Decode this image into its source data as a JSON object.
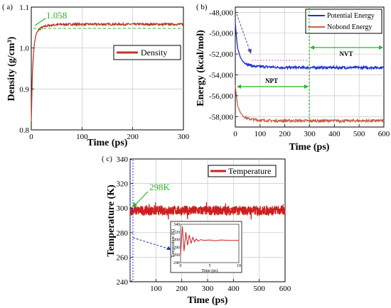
{
  "chart_data": [
    {
      "type": "line",
      "panel_label": "( a)",
      "xlabel": "Time (ps)",
      "ylabel": "Density (g/cm³)",
      "xlim": [
        0,
        300
      ],
      "ylim": [
        0.8,
        1.1
      ],
      "xticks": [
        0,
        100,
        200,
        300
      ],
      "yticks": [
        0.8,
        0.9,
        1.0,
        1.1
      ],
      "yticklabels": [
        "0.8",
        "0.9",
        "1.0",
        "1.1"
      ],
      "grid": true,
      "legend_position": "right",
      "series": [
        {
          "name": "Density",
          "color": "#b8392b",
          "x": [
            0,
            2,
            4,
            6,
            8,
            10,
            15,
            20,
            30,
            40,
            60,
            80,
            100,
            150,
            200,
            250,
            300
          ],
          "y": [
            0.82,
            0.93,
            0.98,
            1.01,
            1.025,
            1.035,
            1.045,
            1.05,
            1.054,
            1.056,
            1.058,
            1.058,
            1.058,
            1.058,
            1.058,
            1.058,
            1.058
          ]
        }
      ],
      "annotations": [
        {
          "text": "1.058",
          "x": 10,
          "y": 1.058
        }
      ]
    },
    {
      "type": "line",
      "panel_label": "( b)",
      "xlabel": "Time (ps)",
      "ylabel": "Energy (kcal/mol)",
      "xlim": [
        0,
        600
      ],
      "ylim": [
        -59000,
        -47500
      ],
      "xticks": [
        0,
        100,
        200,
        300,
        400,
        500,
        600
      ],
      "yticks": [
        -58000,
        -56000,
        -54000,
        -52000,
        -50000,
        -48000
      ],
      "yticklabels": [
        "-58,000",
        "-56,000",
        "-54,000",
        "-52,000",
        "-50,000",
        "-48,000"
      ],
      "grid": true,
      "legend_position": "top-right",
      "series": [
        {
          "name": "Potential Energy",
          "color": "#1f2fd0",
          "x": [
            0,
            5,
            10,
            20,
            30,
            50,
            80,
            100,
            150,
            200,
            300,
            400,
            500,
            600
          ],
          "y": [
            -49000,
            -50500,
            -51500,
            -52300,
            -52700,
            -53000,
            -53200,
            -53200,
            -53250,
            -53300,
            -53300,
            -53300,
            -53300,
            -53300
          ]
        },
        {
          "name": "Nobond Energy",
          "color": "#c86048",
          "x": [
            0,
            5,
            10,
            20,
            30,
            50,
            80,
            100,
            150,
            200,
            300,
            400,
            500,
            600
          ],
          "y": [
            -55000,
            -56200,
            -57000,
            -57600,
            -57900,
            -58200,
            -58300,
            -58350,
            -58400,
            -58400,
            -58400,
            -58400,
            -58400,
            -58400
          ]
        }
      ],
      "regions": [
        {
          "label": "NPT",
          "from": 0,
          "to": 300
        },
        {
          "label": "NVT",
          "from": 300,
          "to": 600
        }
      ]
    },
    {
      "type": "line",
      "panel_label": "( c)",
      "xlabel": "Time (ps)",
      "ylabel": "Temperature (K)",
      "xlim": [
        0,
        600
      ],
      "ylim": [
        240,
        340
      ],
      "xticks": [
        100,
        200,
        300,
        400,
        500,
        600
      ],
      "yticks": [
        240,
        260,
        280,
        300,
        320,
        340
      ],
      "grid": true,
      "legend_position": "top-right",
      "series": [
        {
          "name": "Temperature",
          "color": "#cc1f1f",
          "mean": 298,
          "fluctuation": 4
        }
      ],
      "annotations": [
        {
          "text": "298K",
          "x": 0,
          "y": 298
        }
      ],
      "inset": {
        "xlabel": "Time (ps)",
        "ylabel": "Temperature (K)",
        "xlim": [
          0,
          10
        ],
        "ylim": [
          240,
          340
        ],
        "xticks": [
          0,
          5,
          10
        ],
        "yticks": [
          240,
          260,
          280,
          300,
          320,
          340
        ],
        "x": [
          0,
          0.3,
          0.6,
          0.9,
          1.2,
          1.5,
          1.8,
          2.1,
          2.4,
          2.7,
          3.0,
          3.5,
          4.0,
          5.0,
          6.0,
          7.0,
          8.0,
          9.0,
          10.0
        ],
        "y": [
          260,
          335,
          270,
          320,
          285,
          312,
          290,
          306,
          294,
          302,
          296,
          300,
          298,
          299,
          297,
          299,
          298,
          298,
          298
        ]
      }
    }
  ]
}
